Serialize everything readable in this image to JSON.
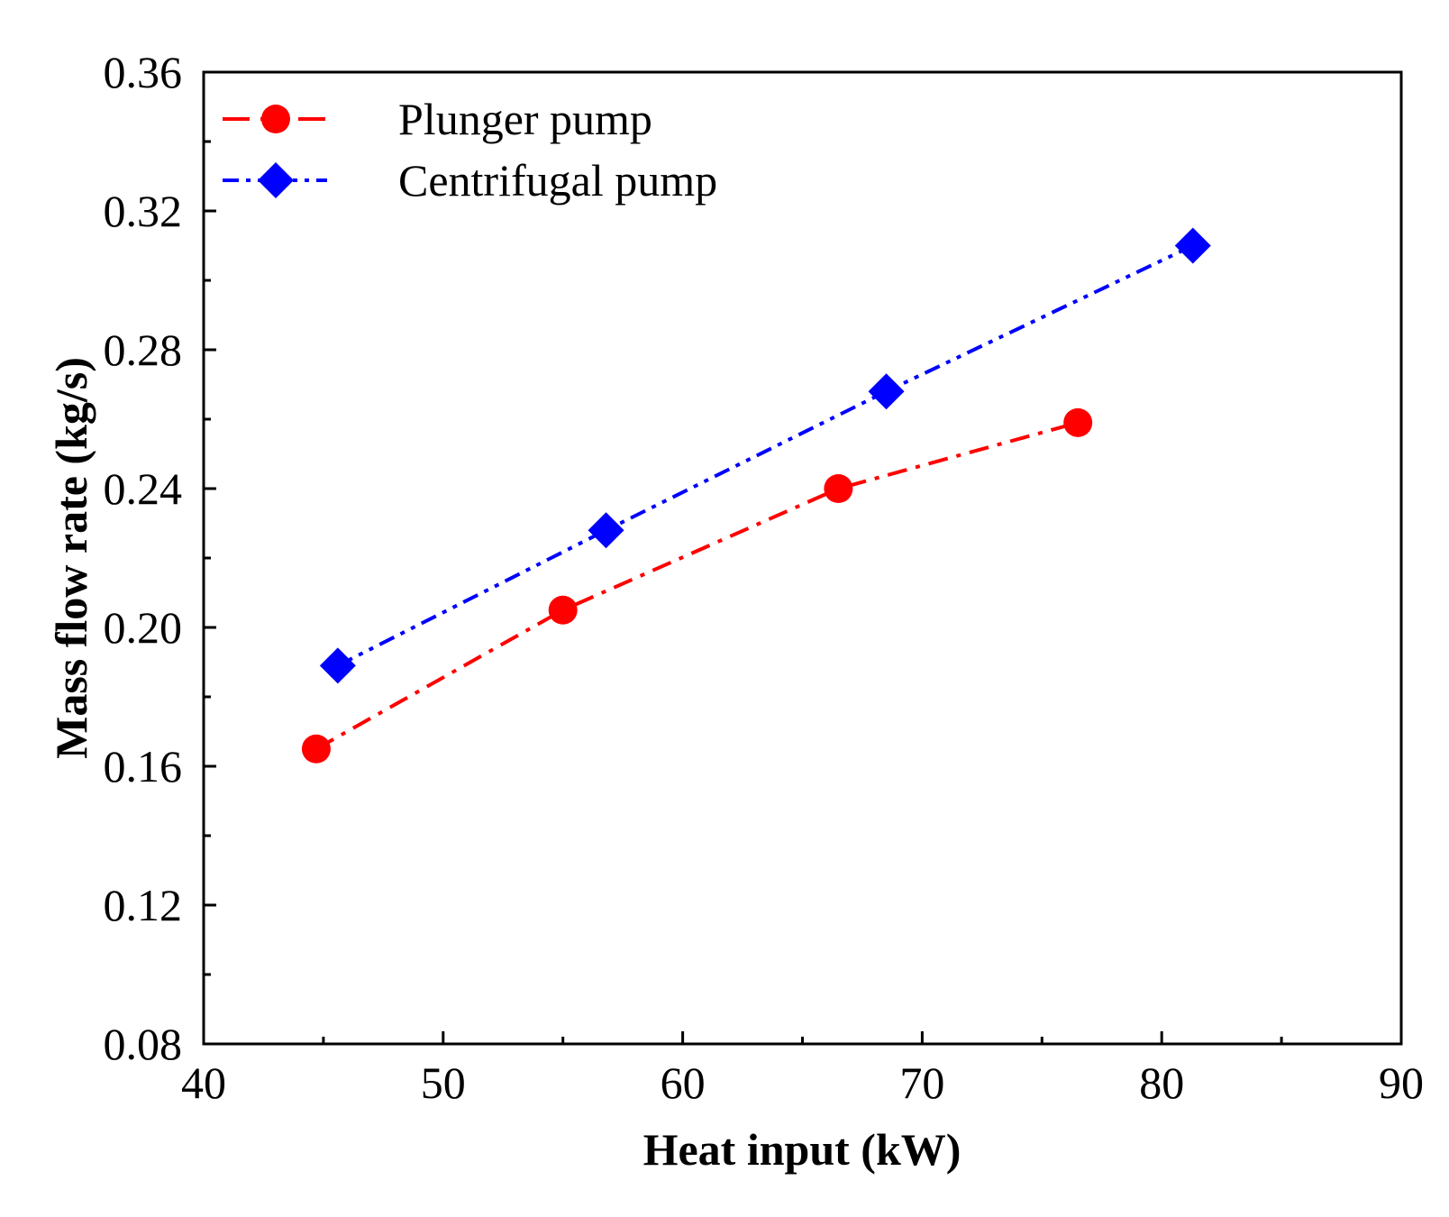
{
  "chart_data": {
    "type": "line",
    "title": "",
    "xlabel": "Heat input (kW)",
    "ylabel": "Mass flow rate (kg/s)",
    "xlim": [
      40,
      90
    ],
    "ylim": [
      0.08,
      0.36
    ],
    "x_ticks": [
      40,
      50,
      60,
      70,
      80,
      90
    ],
    "x_tick_labels": [
      "40",
      "50",
      "60",
      "70",
      "80",
      "90"
    ],
    "y_ticks": [
      0.08,
      0.12,
      0.16,
      0.2,
      0.24,
      0.28,
      0.32,
      0.36
    ],
    "y_tick_labels": [
      "0.08",
      "0.12",
      "0.16",
      "0.20",
      "0.24",
      "0.28",
      "0.32",
      "0.36"
    ],
    "grid": false,
    "legend_position": "top-left",
    "series": [
      {
        "name": "Plunger pump",
        "color": "#ff0000",
        "marker": "circle",
        "line_style": "dash-dot",
        "x": [
          44.7,
          55.0,
          66.5,
          76.5
        ],
        "y": [
          0.165,
          0.205,
          0.24,
          0.259
        ]
      },
      {
        "name": "Centrifugal pump",
        "color": "#0000ff",
        "marker": "diamond",
        "line_style": "dash-dot-dot",
        "x": [
          45.6,
          56.8,
          68.5,
          81.3
        ],
        "y": [
          0.189,
          0.228,
          0.268,
          0.31
        ]
      }
    ]
  }
}
